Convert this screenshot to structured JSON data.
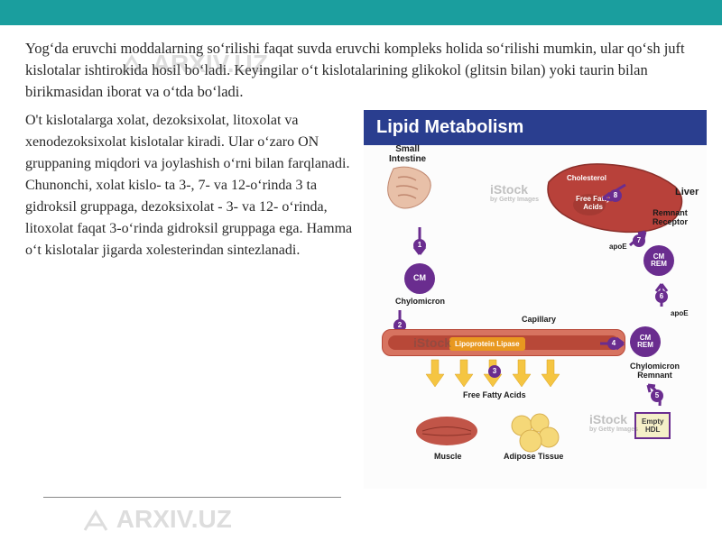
{
  "header_bar_color": "#1a9e9e",
  "main_paragraph": "Yogʻda eruvchi moddalarning soʻrilishi faqat suvda eruvchi kompleks holida soʻrilishi mumkin, ular qoʻsh juft kislotalar ishtirokida hosil boʻladi. Keyingilar oʻt kislotalarining glikokol (glitsin bilan) yoki taurin bilan birikmasidan iborat va oʻtda boʻladi.",
  "second_paragraph": "O't kislotalarga xolat, dezoksixolat, litoxolat va xenodezoksixolat kislotalar kiradi. Ular oʻzaro ON gruppaning miqdori va joylashish oʻrni bilan farqlanadi. Chunonchi, xolat kislo- ta 3-, 7- va 12-oʻrinda 3 ta gidroksil gruppaga, dezoksixolat - 3- va 12- oʻrinda, litoxolat faqat 3-oʻrinda gidroksil gruppaga ega. Hamma oʻt kislotalar jigarda xolesterindan sintezlanadi.",
  "diagram": {
    "title": "Lipid Metabolism",
    "title_bg": "#2a3e8f",
    "labels": {
      "small_intestine": "Small\nIntestine",
      "liver": "Liver",
      "cholesterol": "Cholesterol",
      "free_fatty_acids_top": "Free Fatty\nAcids",
      "remnant_receptor": "Remnant\nReceptor",
      "apoe7": "apoE",
      "cm": "CM",
      "chylomicron": "Chylomicron",
      "cm_rem": "CM\nREM",
      "capillary": "Capillary",
      "lipo_lipase": "Lipoprotein Lipase",
      "apoe4": "apoE",
      "cm_rem2": "CM\nREM",
      "chylo_remnant": "Chylomicron\nRemnant",
      "free_fatty_acids_bottom": "Free Fatty Acids",
      "muscle": "Muscle",
      "adipose": "Adipose Tissue",
      "empty_hdl": "Empty\nHDL"
    },
    "nums": [
      "1",
      "2",
      "3",
      "4",
      "5",
      "6",
      "7",
      "8"
    ],
    "colors": {
      "intestine": "#d8a088",
      "liver": "#b8413a",
      "liver_dark": "#8a2f2a",
      "capillary": "#d77360",
      "capillary_inner": "#b84838",
      "purple": "#6a2d8f",
      "orange": "#e89820",
      "yellow_arrow": "#f5c542",
      "muscle": "#c15548",
      "adipose": "#f5d878",
      "hdl_bg": "#f5f0c8"
    }
  },
  "watermarks": {
    "arxiv": "ARXIV.UZ",
    "istock": "iStock",
    "istock_sub": "by Getty Images"
  }
}
